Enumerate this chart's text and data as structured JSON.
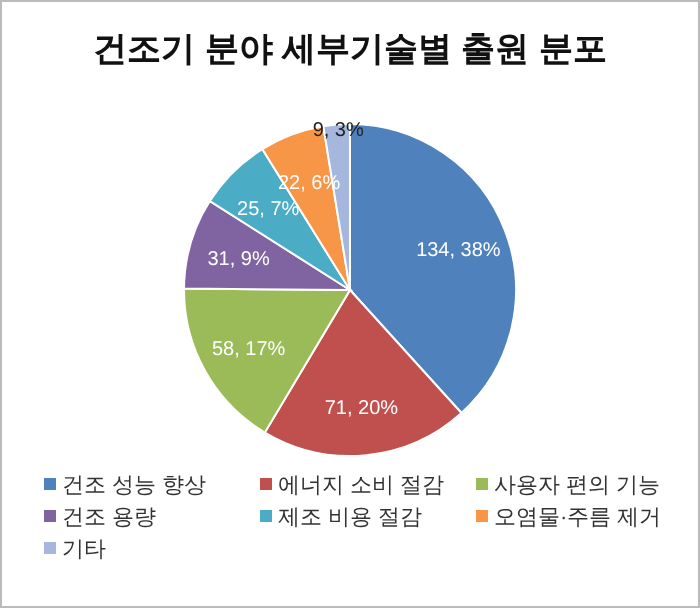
{
  "chart_data": {
    "type": "pie",
    "title": "건조기 분야 세부기술별 출원 분포",
    "categories": [
      "건조 성능 향상",
      "에너지 소비 절감",
      "사용자 편의 기능",
      "건조 용량",
      "제조 비용 절감",
      "오염물·주름 제거",
      "기타"
    ],
    "values": [
      134,
      71,
      58,
      31,
      25,
      22,
      9
    ],
    "value_labels": [
      "134, 38%",
      "71, 20%",
      "58, 17%",
      "31, 9%",
      "25, 7%",
      "22, 6%",
      "9, 3%"
    ],
    "colors": [
      "#4f81bd",
      "#c0504d",
      "#9bbb59",
      "#8064a2",
      "#4bacc6",
      "#f79646",
      "#a5b7dd"
    ],
    "legend": "bottom"
  }
}
